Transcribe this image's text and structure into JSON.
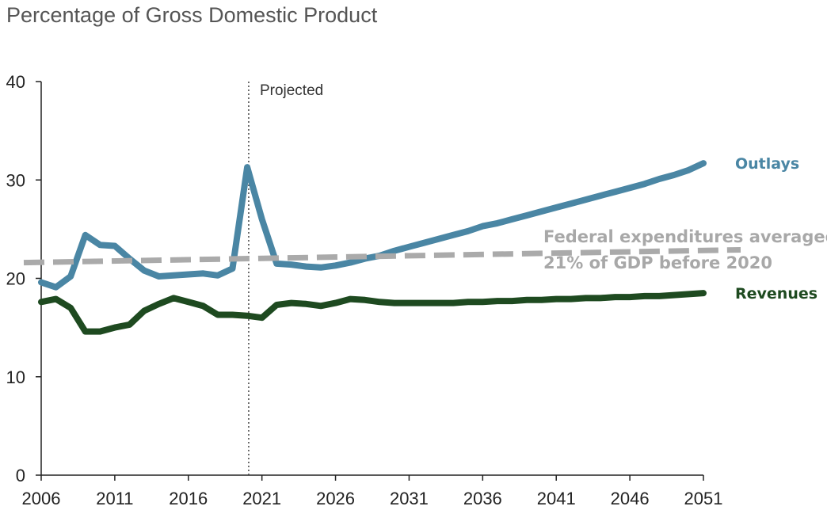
{
  "chart_data": {
    "type": "line",
    "title": "Percentage of Gross Domestic Product",
    "xlabel": "",
    "ylabel": "",
    "xlim": [
      2006,
      2051
    ],
    "ylim": [
      0,
      40
    ],
    "x_ticks": [
      "2006",
      "2011",
      "2016",
      "2021",
      "2026",
      "2031",
      "2036",
      "2041",
      "2046",
      "2051"
    ],
    "y_ticks": [
      "0",
      "10",
      "20",
      "30",
      "40"
    ],
    "grid": false,
    "projected_marker": {
      "x": 2020.1,
      "label": "Projected"
    },
    "series": [
      {
        "name": "Outlays",
        "color": "#4a86a4",
        "x": [
          2006,
          2007,
          2008,
          2009,
          2010,
          2011,
          2012,
          2013,
          2014,
          2015,
          2016,
          2017,
          2018,
          2019,
          2020,
          2021,
          2022,
          2023,
          2024,
          2025,
          2026,
          2027,
          2028,
          2029,
          2030,
          2031,
          2032,
          2033,
          2034,
          2035,
          2036,
          2037,
          2038,
          2039,
          2040,
          2041,
          2042,
          2043,
          2044,
          2045,
          2046,
          2047,
          2048,
          2049,
          2050,
          2051
        ],
        "values": [
          19.6,
          19.1,
          20.2,
          24.4,
          23.4,
          23.3,
          22.0,
          20.8,
          20.2,
          20.3,
          20.4,
          20.5,
          20.3,
          21.0,
          31.3,
          26.0,
          21.5,
          21.4,
          21.2,
          21.1,
          21.3,
          21.6,
          22.0,
          22.3,
          22.8,
          23.2,
          23.6,
          24.0,
          24.4,
          24.8,
          25.3,
          25.6,
          26.0,
          26.4,
          26.8,
          27.2,
          27.6,
          28.0,
          28.4,
          28.8,
          29.2,
          29.6,
          30.1,
          30.5,
          31.0,
          31.7
        ]
      },
      {
        "name": "Revenues",
        "color": "#1e4a20",
        "x": [
          2006,
          2007,
          2008,
          2009,
          2010,
          2011,
          2012,
          2013,
          2014,
          2015,
          2016,
          2017,
          2018,
          2019,
          2020,
          2021,
          2022,
          2023,
          2024,
          2025,
          2026,
          2027,
          2028,
          2029,
          2030,
          2031,
          2032,
          2033,
          2034,
          2035,
          2036,
          2037,
          2038,
          2039,
          2040,
          2041,
          2042,
          2043,
          2044,
          2045,
          2046,
          2047,
          2048,
          2049,
          2050,
          2051
        ],
        "values": [
          17.6,
          17.9,
          17.0,
          14.6,
          14.6,
          15.0,
          15.3,
          16.7,
          17.4,
          18.0,
          17.6,
          17.2,
          16.3,
          16.3,
          16.2,
          16.0,
          17.3,
          17.5,
          17.4,
          17.2,
          17.5,
          17.9,
          17.8,
          17.6,
          17.5,
          17.5,
          17.5,
          17.5,
          17.5,
          17.6,
          17.6,
          17.7,
          17.7,
          17.8,
          17.8,
          17.9,
          17.9,
          18.0,
          18.0,
          18.1,
          18.1,
          18.2,
          18.2,
          18.3,
          18.4,
          18.5
        ]
      }
    ],
    "reference_line": {
      "color": "#aaaaaa",
      "x": [
        2006,
        2051
      ],
      "values": [
        21.6,
        22.9
      ],
      "annotation": [
        "Federal expenditures averaged",
        "21% of GDP before 2020"
      ]
    }
  }
}
